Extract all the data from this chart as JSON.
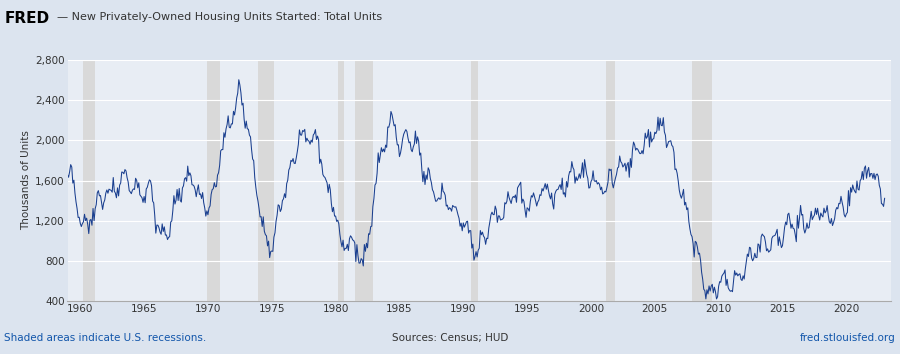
{
  "title": "New Privately-Owned Housing Units Started: Total Units",
  "ylabel": "Thousands of Units",
  "line_color": "#1a3f8f",
  "recession_color": "#d9d9d9",
  "background_color": "#dce4ef",
  "plot_bg_color": "#e8edf4",
  "ylim": [
    400,
    2800
  ],
  "yticks": [
    400,
    800,
    1200,
    1600,
    2000,
    2400,
    2800
  ],
  "xlim_start": 1959.0,
  "xlim_end": 2023.5,
  "xticks": [
    1960,
    1965,
    1970,
    1975,
    1980,
    1985,
    1990,
    1995,
    2000,
    2005,
    2010,
    2015,
    2020
  ],
  "footer_left": "Shaded areas indicate U.S. recessions.",
  "footer_center": "Sources: Census; HUD",
  "footer_right": "fred.stlouisfed.org",
  "recession_periods": [
    [
      1960.25,
      1961.17
    ],
    [
      1969.92,
      1970.92
    ],
    [
      1973.92,
      1975.17
    ],
    [
      1980.17,
      1980.67
    ],
    [
      1981.5,
      1982.92
    ],
    [
      1990.58,
      1991.17
    ],
    [
      2001.17,
      2001.92
    ],
    [
      2007.92,
      2009.5
    ]
  ],
  "fred_logo_text": "FRED",
  "line_label": "— New Privately-Owned Housing Units Started: Total Units"
}
